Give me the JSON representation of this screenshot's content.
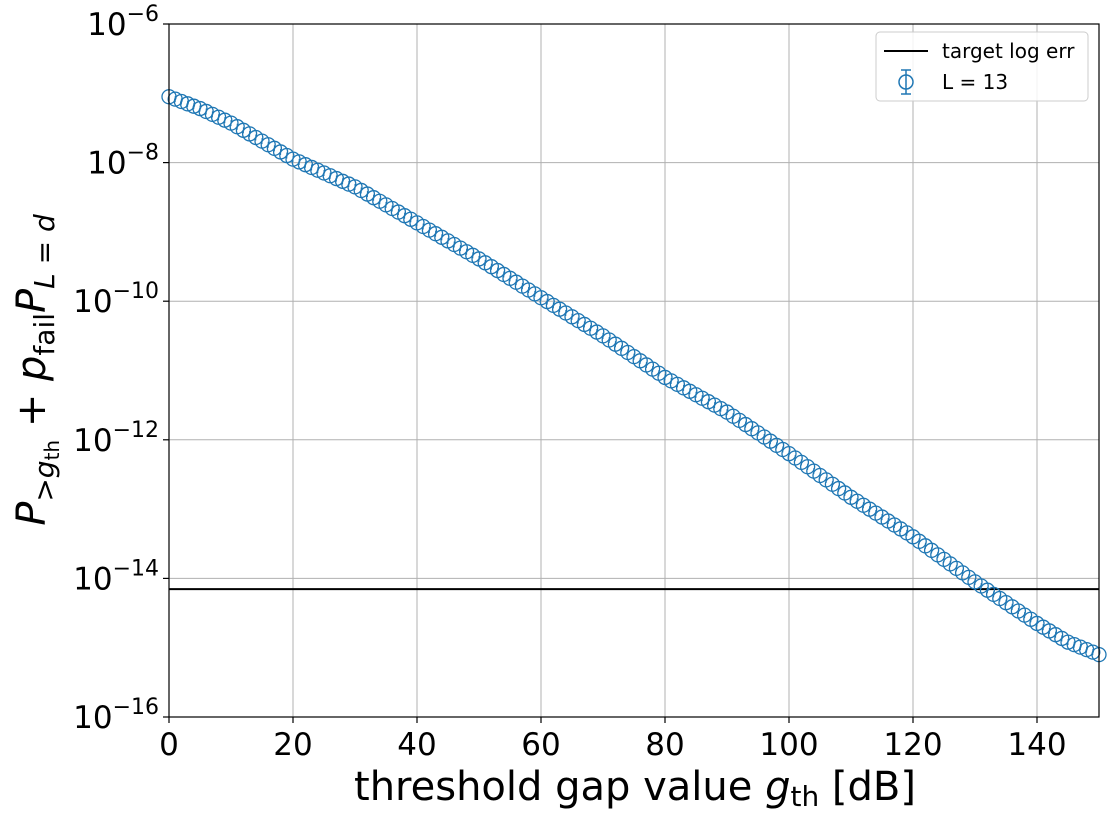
{
  "chart_data": {
    "type": "scatter",
    "xlabel": "threshold gap value g_th [dB]",
    "ylabel": "P_{>g_th} + p_fail P_{L=d}",
    "xlim": [
      0,
      150
    ],
    "ylim": [
      1e-16,
      1e-06
    ],
    "yscale": "log",
    "grid": true,
    "legend_position": "top-right",
    "x_ticks": [
      0,
      20,
      40,
      60,
      80,
      100,
      120,
      140
    ],
    "y_ticks": [
      {
        "base": "10",
        "exp": "−6"
      },
      {
        "base": "10",
        "exp": "−8"
      },
      {
        "base": "10",
        "exp": "−10"
      },
      {
        "base": "10",
        "exp": "−12"
      },
      {
        "base": "10",
        "exp": "−14"
      },
      {
        "base": "10",
        "exp": "−16"
      }
    ],
    "hline": {
      "name": "target log err",
      "y": 7e-15,
      "color": "#000000"
    },
    "series": [
      {
        "name": "L = 13",
        "color": "#1f77b4",
        "marker": "open-circle",
        "x_range": [
          0,
          150
        ],
        "x_step": 1,
        "log10_y_anchors": [
          [
            0,
            -7.05
          ],
          [
            5,
            -7.22
          ],
          [
            10,
            -7.43
          ],
          [
            20,
            -7.95
          ],
          [
            30,
            -8.35
          ],
          [
            40,
            -8.87
          ],
          [
            50,
            -9.39
          ],
          [
            60,
            -9.95
          ],
          [
            70,
            -10.5
          ],
          [
            80,
            -11.1
          ],
          [
            90,
            -11.6
          ],
          [
            100,
            -12.2
          ],
          [
            110,
            -12.83
          ],
          [
            120,
            -13.4
          ],
          [
            130,
            -14.05
          ],
          [
            140,
            -14.65
          ],
          [
            145,
            -14.92
          ],
          [
            150,
            -15.1
          ]
        ]
      }
    ]
  }
}
